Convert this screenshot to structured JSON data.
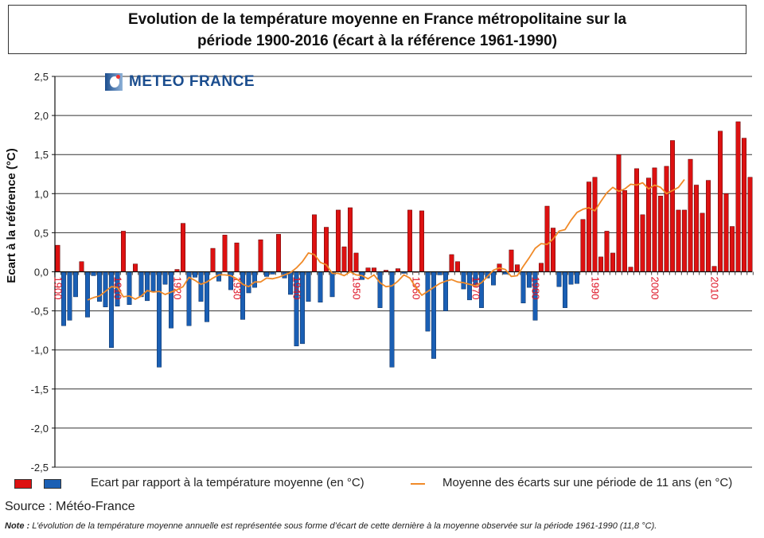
{
  "title_lines": [
    "Evolution de la température moyenne en France métropolitaine sur la",
    "période 1900-2016 (écart à la référence 1961-1990)"
  ],
  "logo_text": "METEO FRANCE",
  "legend": {
    "bars_label": "Ecart par rapport à la température moyenne (en °C)",
    "line_label": "Moyenne des écarts sur une période de 11 ans (en °C)"
  },
  "source": "Source : Météo-France",
  "note_prefix": "Note :",
  "note_text": " L’évolution de la température moyenne annuelle est représentée sous forme d’écart de cette dernière à la moyenne observée sur la période 1961-1990  (11,8 °C).",
  "colors": {
    "positive": "#dd1111",
    "negative": "#1a5fb4",
    "line": "#f08a28",
    "year_label": "#dd1122"
  },
  "chart_data": {
    "type": "bar",
    "title": "Evolution de la température moyenne en France métropolitaine sur la période 1900-2016 (écart à la référence 1961-1990)",
    "xlabel": "",
    "ylabel": "Ecart à la référence (°C)",
    "ylim": [
      -2.5,
      2.5
    ],
    "yticks": [
      2.5,
      2.0,
      1.5,
      1.0,
      0.5,
      0.0,
      -0.5,
      -1.0,
      -1.5,
      -2.0,
      -2.5
    ],
    "ytick_labels": [
      "2,5",
      "2,0",
      "1,5",
      "1,0",
      "0,5",
      "0,0",
      "-0,5",
      "-1,0",
      "-1,5",
      "-2,0",
      "-2,5"
    ],
    "xtick_labels": [
      "1900",
      "1910",
      "1920",
      "1930",
      "1940",
      "1950",
      "1960",
      "1970",
      "1980",
      "1990",
      "2000",
      "2010"
    ],
    "grid": true,
    "legend_position": "bottom",
    "start_year": 1900,
    "series": [
      {
        "name": "Ecart par rapport à la température moyenne (en °C)",
        "type": "bar",
        "values": [
          0.34,
          -0.69,
          -0.62,
          -0.32,
          0.13,
          -0.58,
          -0.05,
          -0.38,
          -0.45,
          -0.97,
          -0.44,
          0.52,
          -0.42,
          0.1,
          -0.32,
          -0.37,
          -0.25,
          -1.22,
          -0.16,
          -0.72,
          0.03,
          0.62,
          -0.69,
          -0.07,
          -0.38,
          -0.64,
          0.3,
          -0.12,
          0.47,
          -0.23,
          0.37,
          -0.61,
          -0.27,
          -0.2,
          0.41,
          -0.06,
          -0.03,
          0.48,
          -0.08,
          -0.29,
          -0.95,
          -0.92,
          -0.38,
          0.73,
          -0.39,
          0.57,
          -0.32,
          0.79,
          0.32,
          0.82,
          0.24,
          -0.1,
          0.05,
          0.05,
          -0.46,
          0.02,
          -1.22,
          0.04,
          -0.02,
          0.79,
          0.0,
          0.78,
          -0.76,
          -1.11,
          -0.04,
          -0.5,
          0.22,
          0.13,
          -0.22,
          -0.36,
          -0.18,
          -0.46,
          -0.08,
          -0.17,
          0.1,
          -0.03,
          0.28,
          0.09,
          -0.4,
          -0.2,
          -0.62,
          0.11,
          0.84,
          0.56,
          -0.19,
          -0.46,
          -0.16,
          -0.15,
          0.67,
          1.15,
          1.21,
          0.19,
          0.52,
          0.24,
          1.5,
          1.04,
          0.06,
          1.32,
          0.73,
          1.2,
          1.33,
          0.97,
          1.35,
          1.68,
          0.79,
          0.79,
          1.44,
          1.11,
          0.75,
          1.17,
          0.07,
          1.8,
          1.0,
          0.58,
          1.92,
          1.71,
          1.21
        ]
      },
      {
        "name": "Moyenne des écarts sur une période de 11 ans (en °C)",
        "type": "line",
        "start_year": 1905,
        "values": [
          -0.36,
          -0.33,
          -0.31,
          -0.25,
          -0.19,
          -0.2,
          -0.32,
          -0.31,
          -0.35,
          -0.31,
          -0.24,
          -0.26,
          -0.25,
          -0.29,
          -0.26,
          -0.23,
          -0.19,
          -0.07,
          -0.11,
          -0.16,
          -0.13,
          -0.08,
          -0.04,
          -0.04,
          -0.05,
          -0.09,
          -0.16,
          -0.19,
          -0.13,
          -0.13,
          -0.08,
          -0.09,
          -0.07,
          -0.04,
          -0.01,
          0.05,
          0.13,
          0.24,
          0.22,
          0.12,
          0.09,
          -0.02,
          -0.02,
          -0.05,
          0.0,
          -0.04,
          -0.05,
          -0.09,
          -0.04,
          -0.14,
          -0.19,
          -0.18,
          -0.12,
          -0.04,
          -0.08,
          -0.2,
          -0.3,
          -0.25,
          -0.2,
          -0.15,
          -0.12,
          -0.1,
          -0.13,
          -0.14,
          -0.16,
          -0.18,
          -0.14,
          -0.06,
          0.02,
          0.05,
          0.03,
          -0.06,
          -0.05,
          0.07,
          0.18,
          0.3,
          0.36,
          0.35,
          0.42,
          0.52,
          0.54,
          0.66,
          0.76,
          0.8,
          0.82,
          0.78,
          0.9,
          1.01,
          1.08,
          1.03,
          1.06,
          1.12,
          1.11,
          1.14,
          1.06,
          1.11,
          1.08,
          1.0,
          1.04,
          1.08,
          1.18
        ]
      }
    ]
  }
}
